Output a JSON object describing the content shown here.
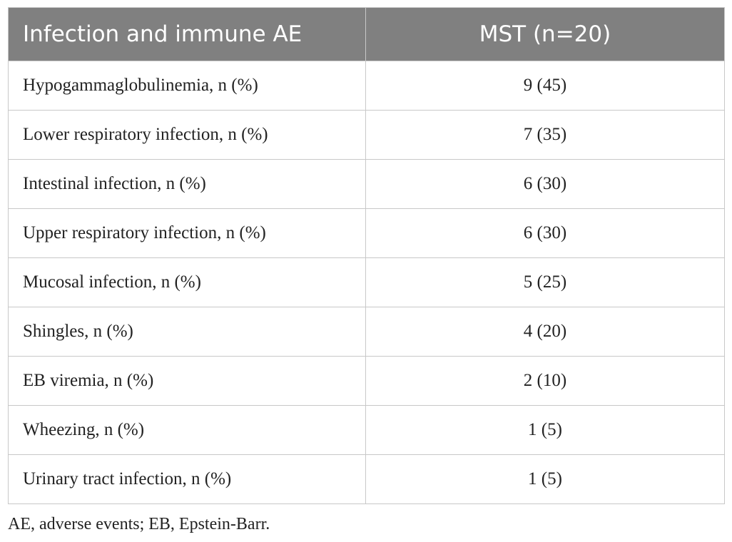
{
  "table": {
    "headers": [
      "Infection and immune AE",
      "MST (n=20)"
    ],
    "rows": [
      {
        "label": "Hypogammaglobulinemia, n (%)",
        "value": "9 (45)"
      },
      {
        "label": "Lower respiratory infection, n (%)",
        "value": "7 (35)"
      },
      {
        "label": "Intestinal infection, n (%)",
        "value": "6 (30)"
      },
      {
        "label": "Upper respiratory infection, n (%)",
        "value": "6 (30)"
      },
      {
        "label": "Mucosal infection, n (%)",
        "value": "5 (25)"
      },
      {
        "label": "Shingles, n (%)",
        "value": "4 (20)"
      },
      {
        "label": "EB viremia, n (%)",
        "value": "2 (10)"
      },
      {
        "label": "Wheezing, n (%)",
        "value": "1 (5)"
      },
      {
        "label": "Urinary tract infection, n (%)",
        "value": "1 (5)"
      }
    ]
  },
  "footnote": "AE, adverse events; EB, Epstein-Barr.",
  "colors": {
    "header_bg": "#808080",
    "header_text": "#ffffff",
    "border": "#c8c8c8",
    "body_text": "#222222"
  }
}
